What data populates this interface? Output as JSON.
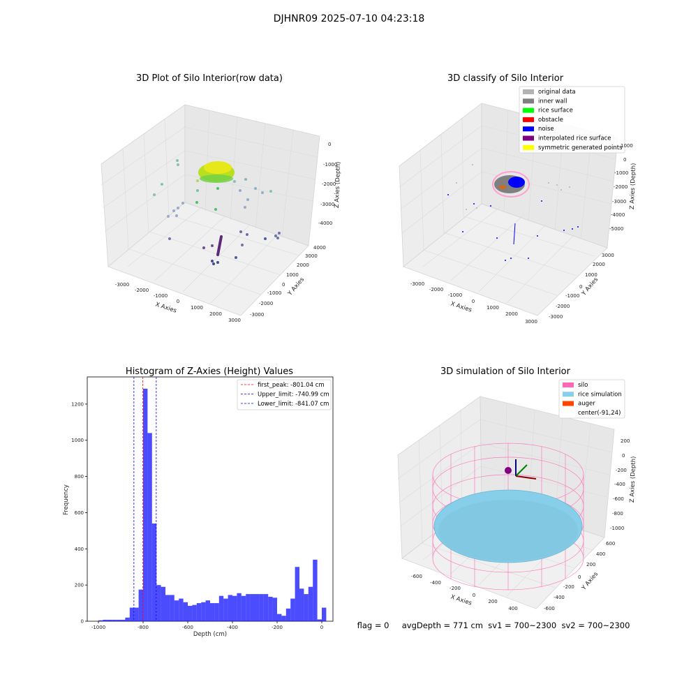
{
  "suptitle": "DJHNR09 2025-07-10 04:23:18",
  "panels": {
    "raw": {
      "title": "3D Plot of Silo Interior(row data)",
      "xlabel": "X Axies",
      "ylabel": "Y Axies",
      "zlabel": "Z Axies (Depth)",
      "xticks": [
        "-3000",
        "-2000",
        "-1000",
        "0",
        "1000",
        "2000",
        "3000"
      ],
      "yticks": [
        "-3000",
        "-2000",
        "-1000",
        "0",
        "1000",
        "2000",
        "3000",
        "4000"
      ],
      "zticks": [
        "0",
        "-1000",
        "-2000",
        "-3000",
        "-4000"
      ]
    },
    "classify": {
      "title": "3D classify of Silo Interior",
      "xlabel": "X Axies",
      "ylabel": "Y Axies",
      "zlabel": "Z Axies (Depth)",
      "xticks": [
        "-3000",
        "-2000",
        "-1000",
        "0",
        "1000",
        "2000",
        "3000"
      ],
      "yticks": [
        "-3000",
        "-2000",
        "-1000",
        "0",
        "1000",
        "2000",
        "3000"
      ],
      "zticks": [
        "1000",
        "0",
        "-1000",
        "-2000",
        "-3000",
        "-4000",
        "-5000"
      ],
      "legend": [
        {
          "label": "original data",
          "color": "#b3b3b3"
        },
        {
          "label": "inner wall",
          "color": "#808080"
        },
        {
          "label": "rice surface",
          "color": "#00ff00"
        },
        {
          "label": "obstacle",
          "color": "#ff0000"
        },
        {
          "label": "noise",
          "color": "#0000ff"
        },
        {
          "label": "interpolated rice surface",
          "color": "#800080"
        },
        {
          "label": "symmetric generated points",
          "color": "#ffff00"
        }
      ]
    },
    "sim": {
      "title": "3D simulation of Silo Interior",
      "xlabel": "X Axies",
      "ylabel": "Y Axies",
      "zlabel": "Z Axies (Depth)",
      "xticks": [
        "-600",
        "-400",
        "-200",
        "0",
        "200",
        "400"
      ],
      "yticks": [
        "-600",
        "-400",
        "-200",
        "0",
        "200",
        "400",
        "600"
      ],
      "zticks": [
        "200",
        "0",
        "-200",
        "-400",
        "-600",
        "-800",
        "-1000"
      ],
      "legend": [
        {
          "label": "silo",
          "color": "#ff69b4"
        },
        {
          "label": "rice simulation",
          "color": "#87ceeb"
        },
        {
          "label": "auger",
          "color": "#ff4500"
        },
        {
          "label": "center(-91,24)",
          "color": null
        }
      ]
    }
  },
  "chart_data": {
    "type": "bar",
    "title": "Histogram of Z-Axies (Height) Values",
    "xlabel": "Depth (cm)",
    "ylabel": "Frequency",
    "xlim": [
      -1050,
      50
    ],
    "ylim": [
      0,
      1350
    ],
    "xticks": [
      -1000,
      -800,
      -600,
      -400,
      -200,
      0
    ],
    "yticks": [
      0,
      200,
      400,
      600,
      800,
      1000,
      1200
    ],
    "bar_color": "#0000ff",
    "bin_width": 20,
    "bin_starts": [
      -1000,
      -980,
      -960,
      -940,
      -920,
      -900,
      -880,
      -860,
      -840,
      -820,
      -800,
      -780,
      -760,
      -740,
      -720,
      -700,
      -680,
      -660,
      -640,
      -620,
      -600,
      -580,
      -560,
      -540,
      -520,
      -500,
      -480,
      -460,
      -440,
      -420,
      -400,
      -380,
      -360,
      -340,
      -320,
      -300,
      -280,
      -260,
      -240,
      -220,
      -200,
      -180,
      -160,
      -140,
      -120,
      -100,
      -80,
      -60,
      -40,
      -20,
      0
    ],
    "values": [
      5,
      8,
      8,
      8,
      8,
      8,
      20,
      75,
      75,
      175,
      1285,
      1040,
      540,
      200,
      190,
      145,
      145,
      115,
      125,
      105,
      85,
      90,
      100,
      105,
      115,
      100,
      100,
      140,
      125,
      145,
      140,
      155,
      140,
      150,
      150,
      150,
      150,
      150,
      135,
      130,
      40,
      30,
      70,
      125,
      300,
      180,
      150,
      190,
      340,
      10,
      75
    ],
    "vlines": [
      {
        "label": "first_peak: -801.04 cm",
        "x": -801.04,
        "color": "#ff0000"
      },
      {
        "label": "Upper_limit: -740.99 cm",
        "x": -740.99,
        "color": "#0000ff"
      },
      {
        "label": "Lower_limit: -841.07 cm",
        "x": -841.07,
        "color": "#0000ff"
      }
    ]
  },
  "status_line": "flag = 0     avgDepth = 771 cm  sv1 = 700~2300  sv2 = 700~2300"
}
